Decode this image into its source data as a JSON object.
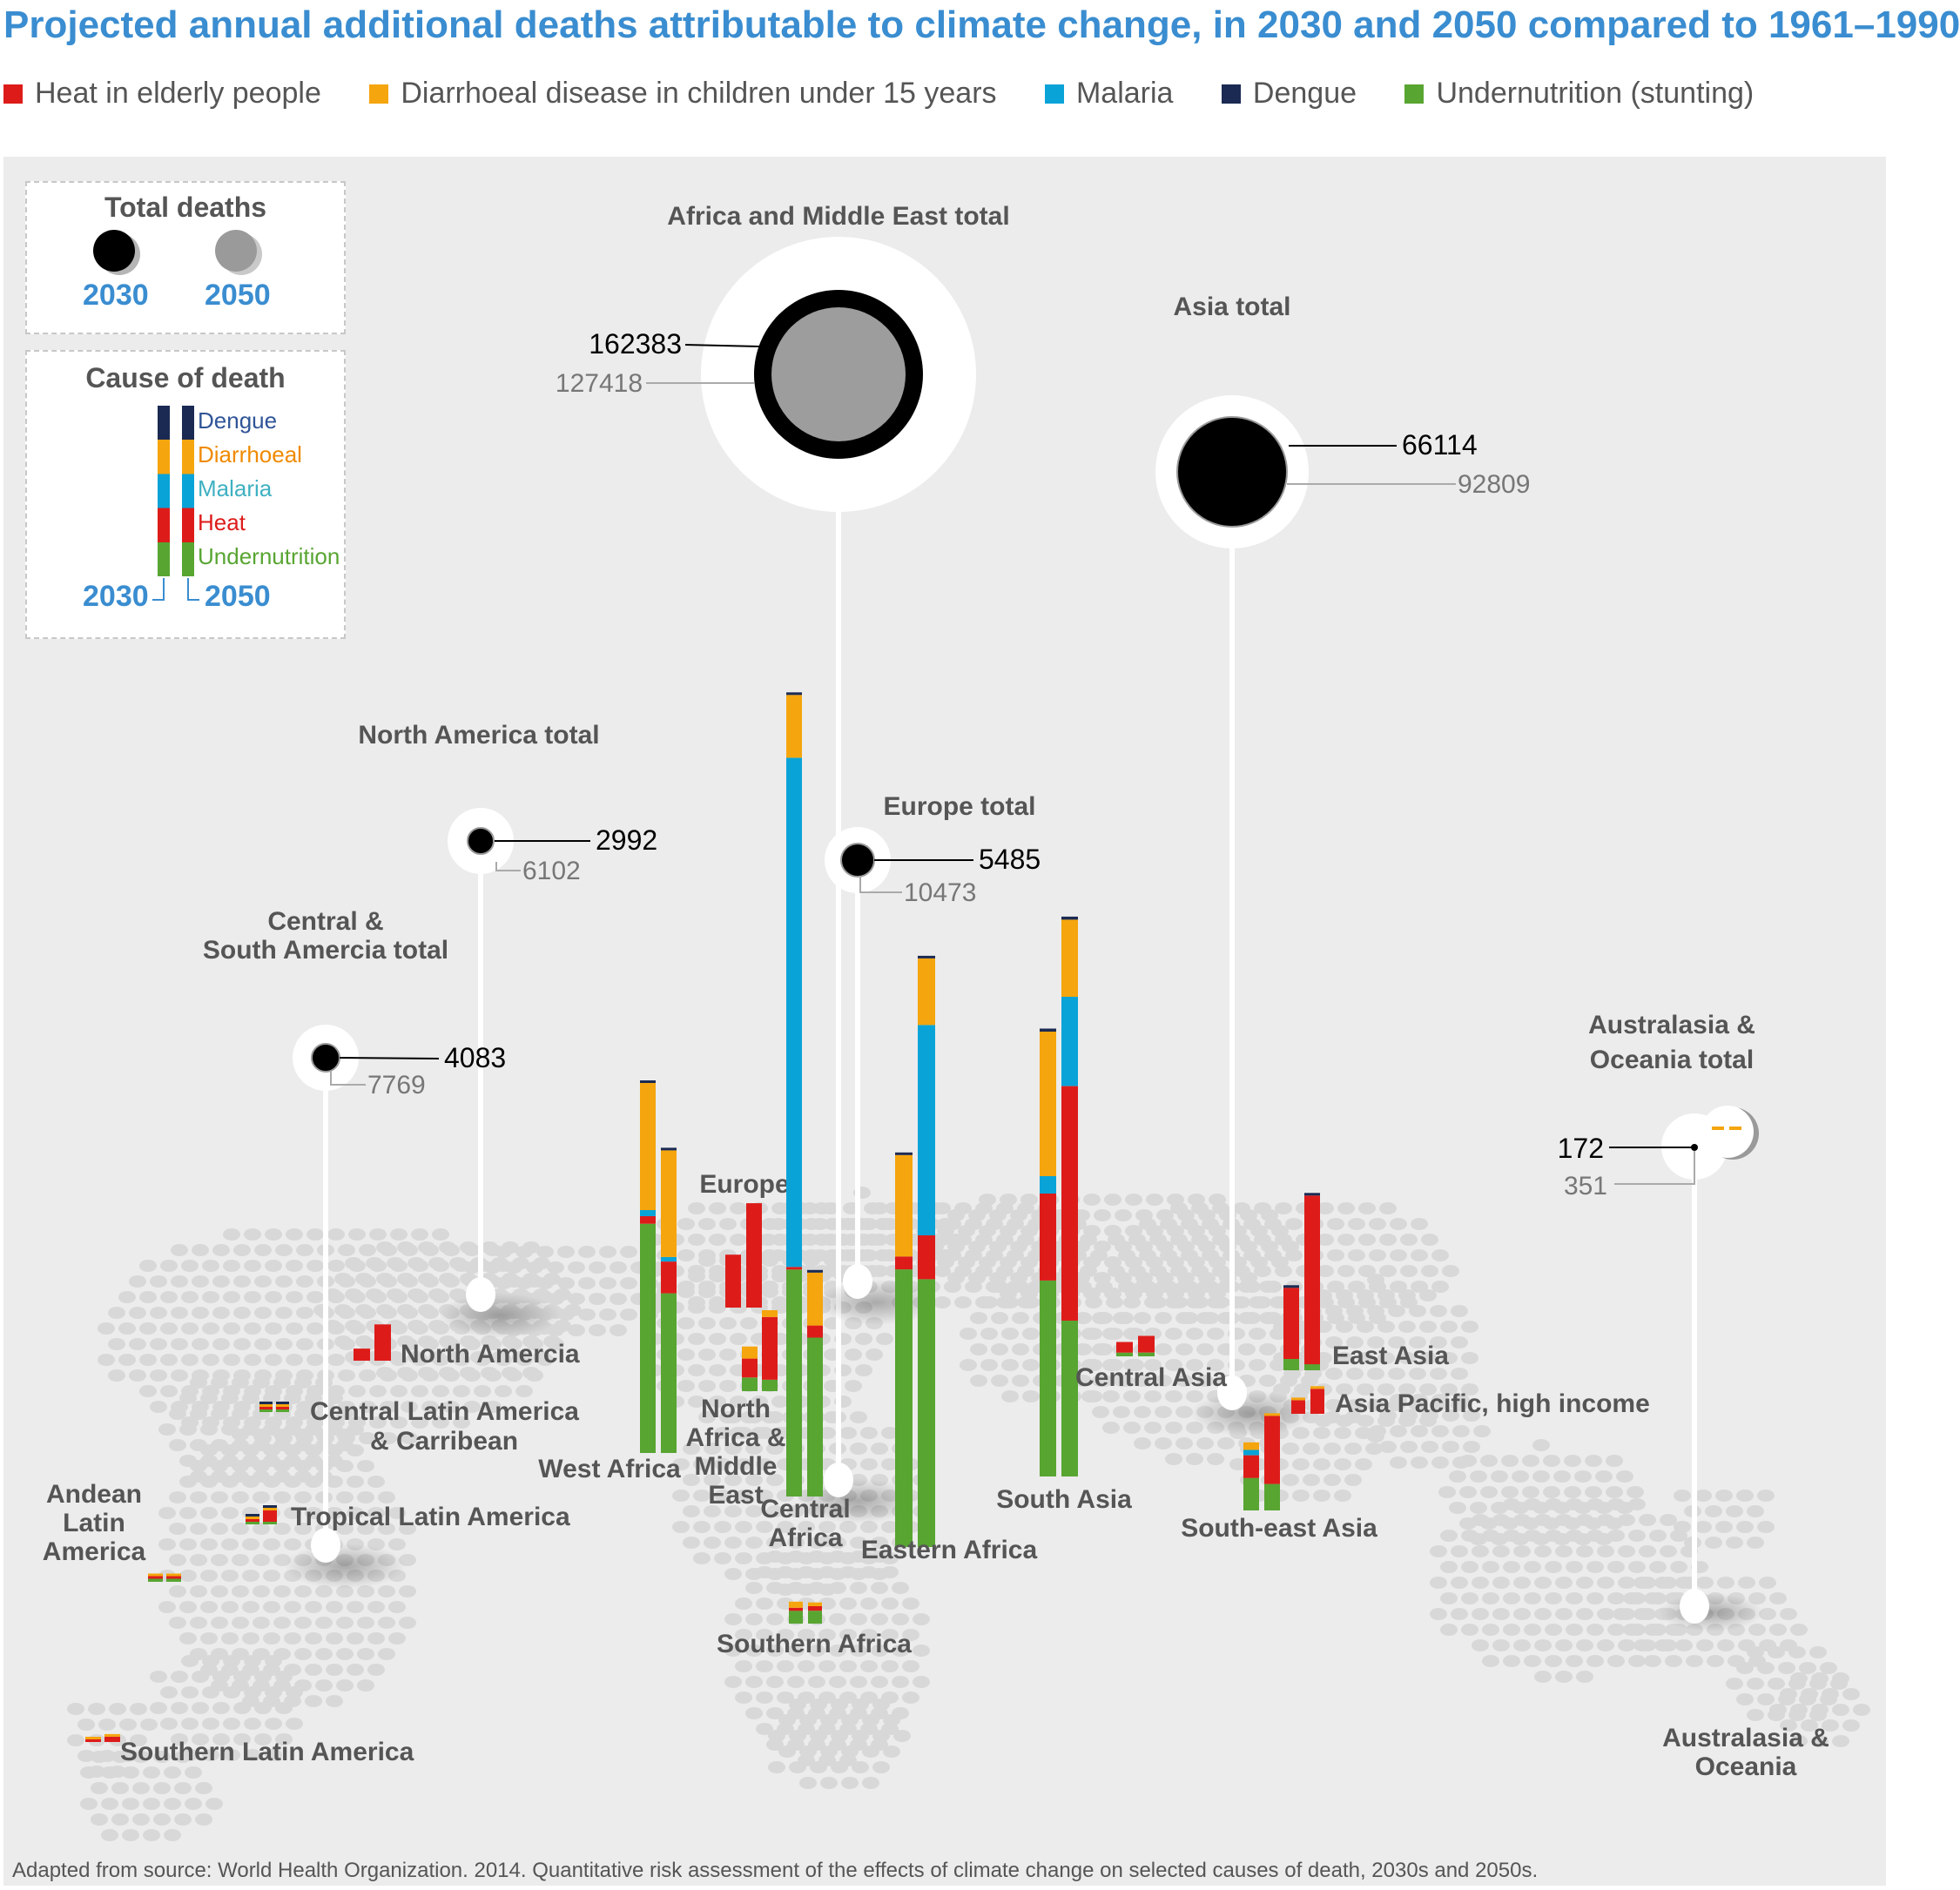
{
  "title": "Projected annual additional deaths attributable to climate change, in 2030 and 2050 compared to 1961–1990",
  "footer": "Adapted from source: World Health Organization. 2014. Quantitative risk assessment of the effects of climate change on selected causes of death, 2030s and 2050s.",
  "colors": {
    "heat": "#dd1c1a",
    "diarrhoeal": "#f5a50d",
    "malaria": "#0aa3d8",
    "dengue": "#1b2a52",
    "undernutrition": "#58a532",
    "accent": "#3a8dd0"
  },
  "legend": [
    {
      "key": "heat",
      "label": "Heat in elderly people"
    },
    {
      "key": "diarrhoeal",
      "label": "Diarrhoeal disease in children under 15 years"
    },
    {
      "key": "malaria",
      "label": "Malaria"
    },
    {
      "key": "dengue",
      "label": "Dengue"
    },
    {
      "key": "undernutrition",
      "label": "Undernutrition (stunting)"
    }
  ],
  "key_box": {
    "total_title": "Total deaths",
    "year_2030": "2030",
    "year_2050": "2050",
    "cause_title": "Cause of death",
    "causes": [
      {
        "key": "dengue",
        "label": "Dengue"
      },
      {
        "key": "diarrhoeal",
        "label": "Diarrhoeal"
      },
      {
        "key": "malaria",
        "label": "Malaria"
      },
      {
        "key": "heat",
        "label": "Heat"
      },
      {
        "key": "undernutrition",
        "label": "Undernutrition"
      }
    ]
  },
  "chart_data": {
    "type": "bar",
    "stacked": true,
    "years": [
      "2030",
      "2050"
    ],
    "stack_order": [
      "undernutrition",
      "heat",
      "malaria",
      "diarrhoeal",
      "dengue"
    ],
    "totals": [
      {
        "name": "Africa and Middle East total",
        "v2030": "162383",
        "v2050": "127418"
      },
      {
        "name": "Asia total",
        "v2030": "66114",
        "v2050": "92809"
      },
      {
        "name": "North America total",
        "v2030": "2992",
        "v2050": "6102"
      },
      {
        "name": "Europe total",
        "v2030": "5485",
        "v2050": "10473"
      },
      {
        "name": "Central & South Amercia total",
        "v2030": "4083",
        "v2050": "7769"
      },
      {
        "name": "Australasia & Oceania total",
        "v2030": "172",
        "v2050": "351"
      }
    ],
    "regions": [
      {
        "name": "North Amercia",
        "s2030": {
          "heat": 1600
        },
        "s2050": {
          "heat": 4800
        }
      },
      {
        "name": "Central Latin America & Carribean",
        "s2030": {
          "undernutrition": 40,
          "heat": 150,
          "diarrhoeal": 40,
          "dengue": 30
        },
        "s2050": {
          "undernutrition": 40,
          "heat": 200,
          "diarrhoeal": 30,
          "dengue": 30
        }
      },
      {
        "name": "Tropical Latin America",
        "s2030": {
          "undernutrition": 150,
          "heat": 350,
          "diarrhoeal": 80,
          "dengue": 60
        },
        "s2050": {
          "undernutrition": 100,
          "heat": 1500,
          "diarrhoeal": 50,
          "dengue": 60
        }
      },
      {
        "name": "Andean Latin America",
        "s2030": {
          "undernutrition": 400,
          "heat": 150,
          "diarrhoeal": 100
        },
        "s2050": {
          "undernutrition": 400,
          "heat": 250,
          "diarrhoeal": 80
        }
      },
      {
        "name": "Southern Latin America",
        "s2030": {
          "heat": 300,
          "diarrhoeal": 60
        },
        "s2050": {
          "heat": 700,
          "diarrhoeal": 30
        }
      },
      {
        "name": "West Africa",
        "s2030": {
          "undernutrition": 30300,
          "heat": 1000,
          "malaria": 800,
          "diarrhoeal": 16800,
          "dengue": 200
        },
        "s2050": {
          "undernutrition": 21100,
          "heat": 4200,
          "malaria": 600,
          "diarrhoeal": 14100,
          "dengue": 200
        }
      },
      {
        "name": "Europe",
        "s2030": {
          "heat": 7000
        },
        "s2050": {
          "heat": 13800
        }
      },
      {
        "name": "North Africa & Middle East",
        "s2030": {
          "undernutrition": 1800,
          "heat": 2500,
          "diarrhoeal": 1600
        },
        "s2050": {
          "undernutrition": 1500,
          "heat": 8300,
          "diarrhoeal": 900
        }
      },
      {
        "name": "Central Africa",
        "s2030": {
          "undernutrition": 30000,
          "heat": 300,
          "malaria": 67300,
          "diarrhoeal": 8300,
          "dengue": 200
        },
        "s2050": {
          "undernutrition": 21000,
          "heat": 1600,
          "diarrhoeal": 7000,
          "dengue": 200
        }
      },
      {
        "name": "Southern Africa",
        "s2030": {
          "undernutrition": 1700,
          "heat": 400,
          "diarrhoeal": 800
        },
        "s2050": {
          "undernutrition": 1700,
          "heat": 600,
          "diarrhoeal": 500
        }
      },
      {
        "name": "Eastern Africa",
        "s2030": {
          "undernutrition": 36700,
          "heat": 1700,
          "diarrhoeal": 13400,
          "dengue": 200
        },
        "s2050": {
          "undernutrition": 35400,
          "heat": 5800,
          "malaria": 27800,
          "diarrhoeal": 8800,
          "dengue": 200
        }
      },
      {
        "name": "South Asia",
        "s2030": {
          "undernutrition": 25900,
          "heat": 11500,
          "malaria": 2300,
          "diarrhoeal": 19100,
          "dengue": 400
        },
        "s2050": {
          "undernutrition": 20600,
          "heat": 31000,
          "malaria": 11800,
          "diarrhoeal": 10200,
          "dengue": 400
        }
      },
      {
        "name": "Central Asia",
        "s2030": {
          "undernutrition": 500,
          "heat": 1400
        },
        "s2050": {
          "undernutrition": 500,
          "heat": 2200
        }
      },
      {
        "name": "East Asia",
        "s2030": {
          "undernutrition": 1500,
          "heat": 9400,
          "dengue": 300
        },
        "s2050": {
          "undernutrition": 800,
          "heat": 22300,
          "dengue": 200
        }
      },
      {
        "name": "Asia Pacific, high income",
        "s2030": {
          "heat": 1800,
          "diarrhoeal": 100
        },
        "s2050": {
          "heat": 3300,
          "diarrhoeal": 100
        }
      },
      {
        "name": "South-east Asia",
        "s2030": {
          "undernutrition": 4300,
          "heat": 3000,
          "malaria": 700,
          "diarrhoeal": 1000
        },
        "s2050": {
          "undernutrition": 3500,
          "heat": 9000,
          "diarrhoeal": 300
        }
      },
      {
        "name": "Australasia & Oceania",
        "s2030": {
          "heat": 100,
          "diarrhoeal": 40
        },
        "s2050": {
          "heat": 250,
          "diarrhoeal": 60
        }
      }
    ]
  }
}
